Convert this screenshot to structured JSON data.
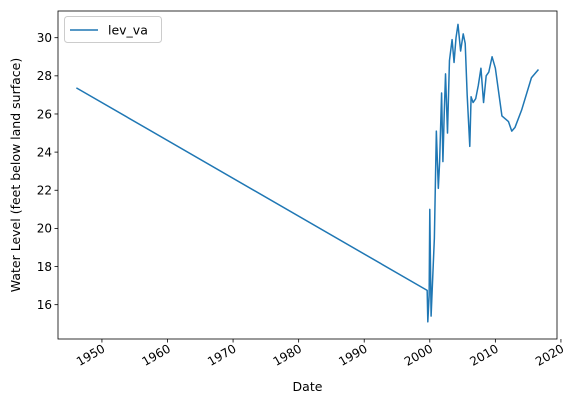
{
  "chart_data": {
    "type": "line",
    "xlabel": "Date",
    "ylabel": "Water Level (feet below land surface)",
    "xlim": [
      1943.3,
      2019.4
    ],
    "ylim": [
      14.2,
      31.4
    ],
    "x_ticks": [
      1950,
      1960,
      1970,
      1980,
      1990,
      2000,
      2010,
      2020
    ],
    "x_tick_labels": [
      "1950",
      "1960",
      "1970",
      "1980",
      "1990",
      "2000",
      "2010",
      "2020"
    ],
    "y_ticks": [
      16,
      18,
      20,
      22,
      24,
      26,
      28,
      30
    ],
    "y_tick_labels": [
      "16",
      "18",
      "20",
      "22",
      "24",
      "26",
      "28",
      "30"
    ],
    "legend_position": "top-left",
    "grid": false,
    "series": [
      {
        "name": "lev_va",
        "color": "#1f77b4",
        "x": [
          1946.2,
          1999.6,
          1999.7,
          1999.9,
          2000.0,
          2000.2,
          2000.7,
          2001.0,
          2001.3,
          2001.5,
          2001.8,
          2002.0,
          2002.2,
          2002.4,
          2002.7,
          2003.0,
          2003.4,
          2003.7,
          2004.0,
          2004.3,
          2004.7,
          2005.1,
          2005.4,
          2005.7,
          2006.1,
          2006.3,
          2006.6,
          2007.0,
          2007.4,
          2007.8,
          2008.2,
          2008.6,
          2009.0,
          2009.5,
          2010.0,
          2011.0,
          2012.0,
          2012.5,
          2013.0,
          2014.0,
          2015.5,
          2016.5
        ],
        "y": [
          27.35,
          16.75,
          15.1,
          16.5,
          21.0,
          15.4,
          19.5,
          25.1,
          22.1,
          23.5,
          27.1,
          23.5,
          26.0,
          28.1,
          25.0,
          28.8,
          29.9,
          28.7,
          30.0,
          30.7,
          29.3,
          30.2,
          29.7,
          27.0,
          24.3,
          26.9,
          26.6,
          26.8,
          27.5,
          28.4,
          26.6,
          28.0,
          28.2,
          29.0,
          28.4,
          25.9,
          25.6,
          25.1,
          25.3,
          26.2,
          27.9,
          28.3
        ]
      }
    ]
  }
}
